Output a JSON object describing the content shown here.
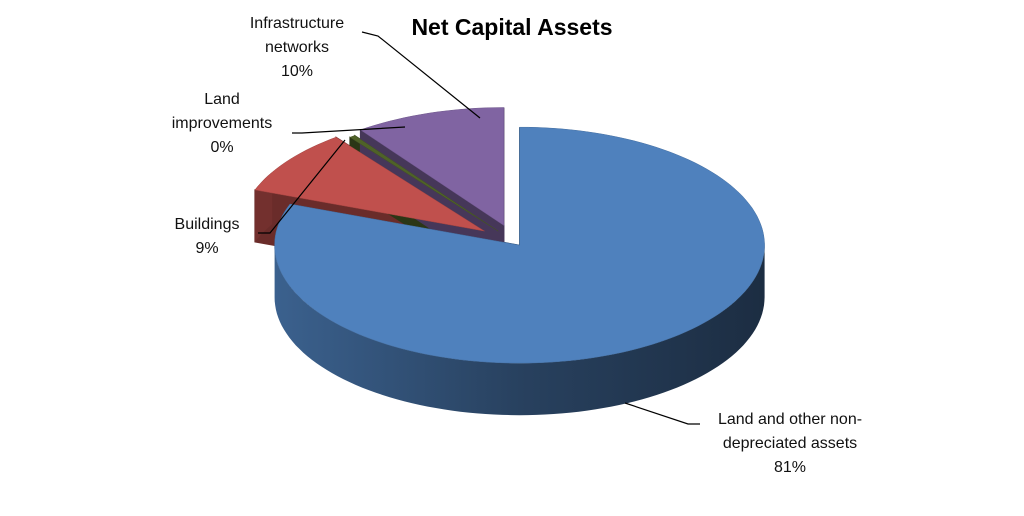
{
  "chart_data": {
    "type": "pie3d",
    "title": "Net Capital Assets",
    "categories": [
      "Land and other non-depreciated assets",
      "Buildings",
      "Land improvements",
      "Infrastructure networks"
    ],
    "values": [
      81,
      9,
      0.4,
      10
    ],
    "value_labels": [
      "81%",
      "9%",
      "0%",
      "10%"
    ],
    "colors": [
      "#4f81bd",
      "#c0504d",
      "#4f6228",
      "#8064a2"
    ]
  }
}
